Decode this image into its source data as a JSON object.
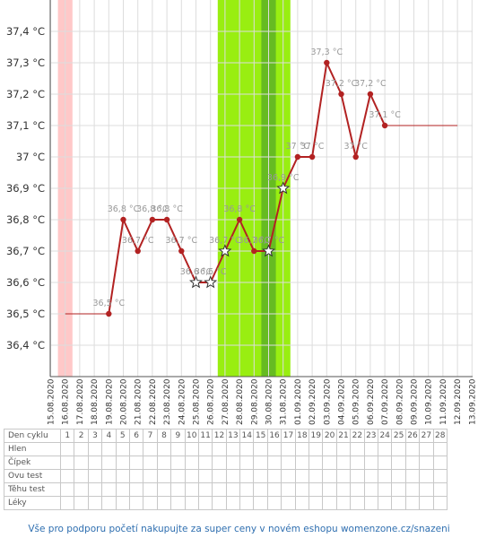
{
  "chart_data": {
    "type": "line",
    "ylim": [
      36.3,
      37.5
    ],
    "y_ticks": [
      36.4,
      36.5,
      36.6,
      36.7,
      36.8,
      36.9,
      37.0,
      37.1,
      37.2,
      37.3,
      37.4
    ],
    "y_tick_labels": [
      "36,4 °C",
      "36,5 °C",
      "36,6 °C",
      "36,7 °C",
      "36,8 °C",
      "36,9 °C",
      "37 °C",
      "37,1 °C",
      "37,2 °C",
      "37,3 °C",
      "37,4 °C"
    ],
    "x_dates": [
      "15.08.2020",
      "16.08.2020",
      "17.08.2020",
      "18.08.2020",
      "19.08.2020",
      "20.08.2020",
      "21.08.2020",
      "22.08.2020",
      "23.08.2020",
      "24.08.2020",
      "25.08.2020",
      "26.08.2020",
      "27.08.2020",
      "28.08.2020",
      "29.08.2020",
      "30.08.2020",
      "31.08.2020",
      "01.09.2020",
      "02.09.2020",
      "03.09.2020",
      "04.09.2020",
      "05.09.2020",
      "06.09.2020",
      "07.09.2020",
      "08.09.2020",
      "09.09.2020",
      "10.09.2020",
      "11.09.2020",
      "12.09.2020",
      "13.09.2020"
    ],
    "grid": true,
    "menstruation_dates": [
      "16.08.2020"
    ],
    "fertile_window": [
      "27.08.2020",
      "31.08.2020"
    ],
    "peak_fertility_date": "30.08.2020",
    "coverline_value": 36.5,
    "coverline_end_value": 37.1,
    "series": [
      {
        "points": [
          {
            "date": "19.08.2020",
            "value": 36.5,
            "label": "36,5 °C",
            "marker": "dot"
          },
          {
            "date": "20.08.2020",
            "value": 36.8,
            "label": "36,8 °C",
            "marker": "dot"
          },
          {
            "date": "21.08.2020",
            "value": 36.7,
            "label": "36,7 °C",
            "marker": "dot"
          },
          {
            "date": "22.08.2020",
            "value": 36.8,
            "label": "36,8 °C",
            "marker": "dot"
          },
          {
            "date": "23.08.2020",
            "value": 36.8,
            "label": "36,8 °C",
            "marker": "dot"
          },
          {
            "date": "24.08.2020",
            "value": 36.7,
            "label": "36,7 °C",
            "marker": "dot"
          },
          {
            "date": "25.08.2020",
            "value": 36.6,
            "label": "36,6 °C",
            "marker": "star"
          },
          {
            "date": "26.08.2020",
            "value": 36.6,
            "label": "36,6 °C",
            "marker": "star"
          },
          {
            "date": "27.08.2020",
            "value": 36.7,
            "label": "36,7 °C",
            "marker": "star"
          },
          {
            "date": "28.08.2020",
            "value": 36.8,
            "label": "36,8 °C",
            "marker": "dot"
          },
          {
            "date": "29.08.2020",
            "value": 36.7,
            "label": "36,7 °C",
            "marker": "dot"
          },
          {
            "date": "30.08.2020",
            "value": 36.7,
            "label": "36,7 °C",
            "marker": "star"
          },
          {
            "date": "31.08.2020",
            "value": 36.9,
            "label": "36,9 °C",
            "marker": "star"
          },
          {
            "date": "01.09.2020",
            "value": 37.0,
            "label": "37 °C",
            "marker": "dot"
          },
          {
            "date": "02.09.2020",
            "value": 37.0,
            "label": "37 °C",
            "marker": "dot"
          },
          {
            "date": "03.09.2020",
            "value": 37.3,
            "label": "37,3 °C",
            "marker": "dot"
          },
          {
            "date": "04.09.2020",
            "value": 37.2,
            "label": "37,2 °C",
            "marker": "dot"
          },
          {
            "date": "05.09.2020",
            "value": 37.0,
            "label": "37 °C",
            "marker": "dot"
          },
          {
            "date": "06.09.2020",
            "value": 37.2,
            "label": "37,2 °C",
            "marker": "dot"
          },
          {
            "date": "07.09.2020",
            "value": 37.1,
            "label": "37,1 °C",
            "marker": "dot"
          }
        ]
      }
    ]
  },
  "table": {
    "row_labels": [
      "Den cyklu",
      "Hlen",
      "Čípek",
      "Ovu test",
      "Těhu test",
      "Léky"
    ],
    "cycle_days": [
      "1",
      "2",
      "3",
      "4",
      "5",
      "6",
      "7",
      "8",
      "9",
      "10",
      "11",
      "12",
      "13",
      "14",
      "15",
      "16",
      "17",
      "18",
      "19",
      "20",
      "21",
      "22",
      "23",
      "24",
      "25",
      "26",
      "27",
      "28"
    ]
  },
  "footer": {
    "text": "Vše pro podporu početí nakupujte za super ceny v novém eshopu womenzone.cz/snazeni"
  },
  "colors": {
    "line": "#b22222",
    "fertile": "#99ee11",
    "peak": "#66bb22",
    "menstruation": "#ffc8c8",
    "label_text": "#999999",
    "footer": "#2f6fb0"
  }
}
